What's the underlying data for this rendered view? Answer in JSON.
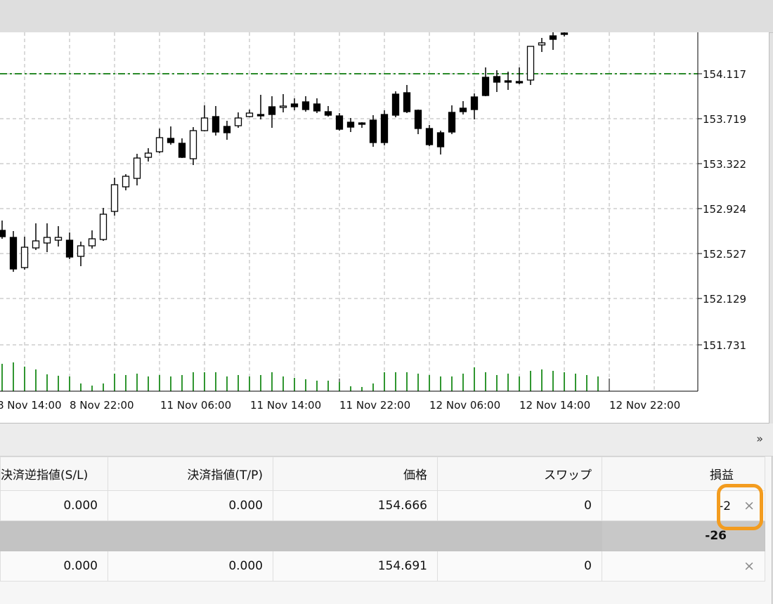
{
  "chart": {
    "price_axis": [
      "154.117",
      "153.719",
      "153.322",
      "152.924",
      "152.527",
      "152.129",
      "151.731"
    ],
    "time_axis": [
      "8 Nov 14:00",
      "8 Nov 22:00",
      "11 Nov 06:00",
      "11 Nov 14:00",
      "11 Nov 22:00",
      "12 Nov 06:00",
      "12 Nov 14:00",
      "12 Nov 22:00"
    ],
    "current_price": "154.117",
    "colors": {
      "bull_body": "#ffffff",
      "bear_body": "#000000",
      "wick": "#000000",
      "volume": "#1a8a1a",
      "price_line": "#2a8a2a",
      "grid": "#b5b5b5"
    }
  },
  "toolbar": {
    "expand_label": "»"
  },
  "positions": {
    "columns": {
      "sl": "決済逆指値(S/L)",
      "tp": "決済指値(T/P)",
      "price": "価格",
      "swap": "スワップ",
      "profit": "損益"
    },
    "rows": [
      {
        "sl": "0.000",
        "tp": "0.000",
        "price": "154.666",
        "swap": "0",
        "profit": "-2",
        "close": "×"
      }
    ],
    "summary": {
      "profit": "-26"
    },
    "rows2": [
      {
        "sl": "0.000",
        "tp": "0.000",
        "price": "154.691",
        "swap": "0",
        "profit": "",
        "close": "×"
      }
    ]
  }
}
